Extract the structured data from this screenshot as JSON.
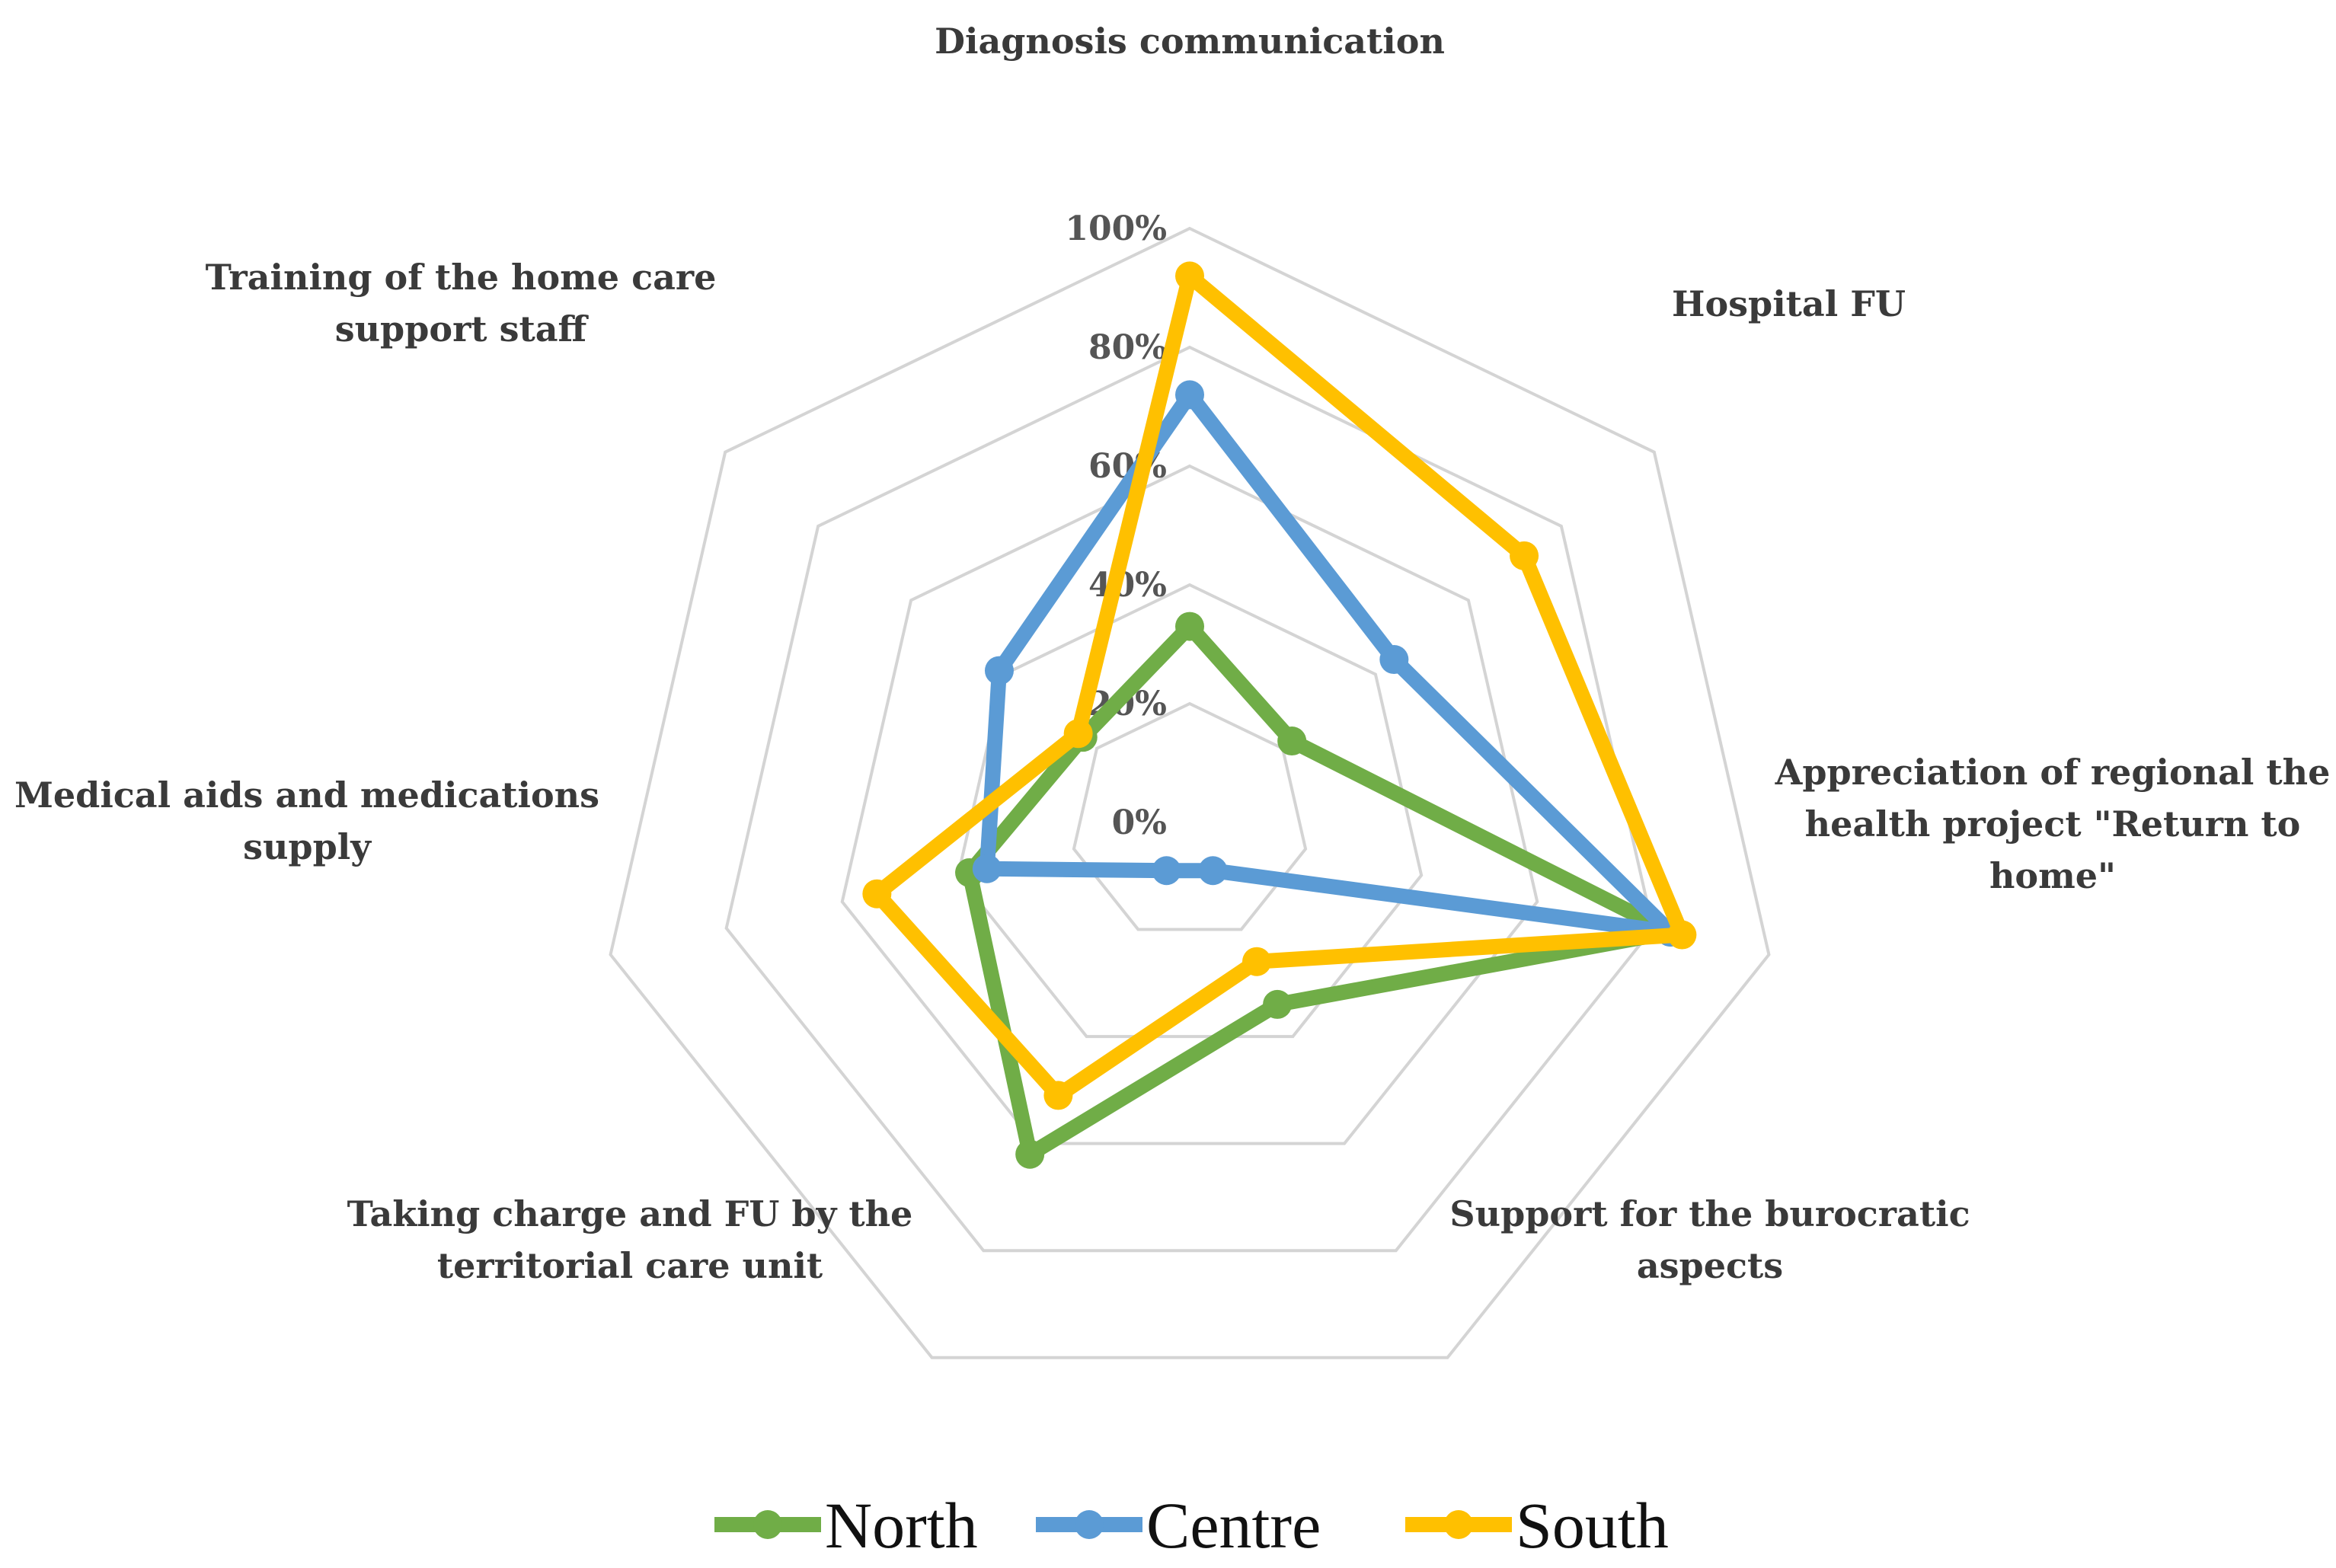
{
  "chart_data": {
    "type": "radar",
    "title": "",
    "categories": [
      [
        "Diagnosis communication"
      ],
      [
        "Hospital FU"
      ],
      [
        "Appreciation of regional the",
        "health project \"Return to",
        "home\""
      ],
      [
        "Support for the burocratic",
        "aspects"
      ],
      [
        "Taking charge and FU by the",
        "territorial care unit"
      ],
      [
        "Medical aids and medications",
        "supply"
      ],
      [
        "Training of the home care",
        "support staff"
      ]
    ],
    "ticks": [
      "0%",
      "20%",
      "40%",
      "60%",
      "80%",
      "100%"
    ],
    "rlim": [
      0,
      100
    ],
    "series": [
      {
        "name": "North",
        "color": "#70ad47",
        "values": [
          33,
          22,
          83,
          34,
          62,
          38,
          23
        ]
      },
      {
        "name": "Centre",
        "color": "#5b9bd5",
        "values": [
          72,
          44,
          83,
          9,
          9,
          35,
          41
        ]
      },
      {
        "name": "South",
        "color": "#ffc000",
        "values": [
          92,
          72,
          85,
          26,
          51,
          54,
          24
        ]
      }
    ],
    "legend_position": "bottom"
  }
}
